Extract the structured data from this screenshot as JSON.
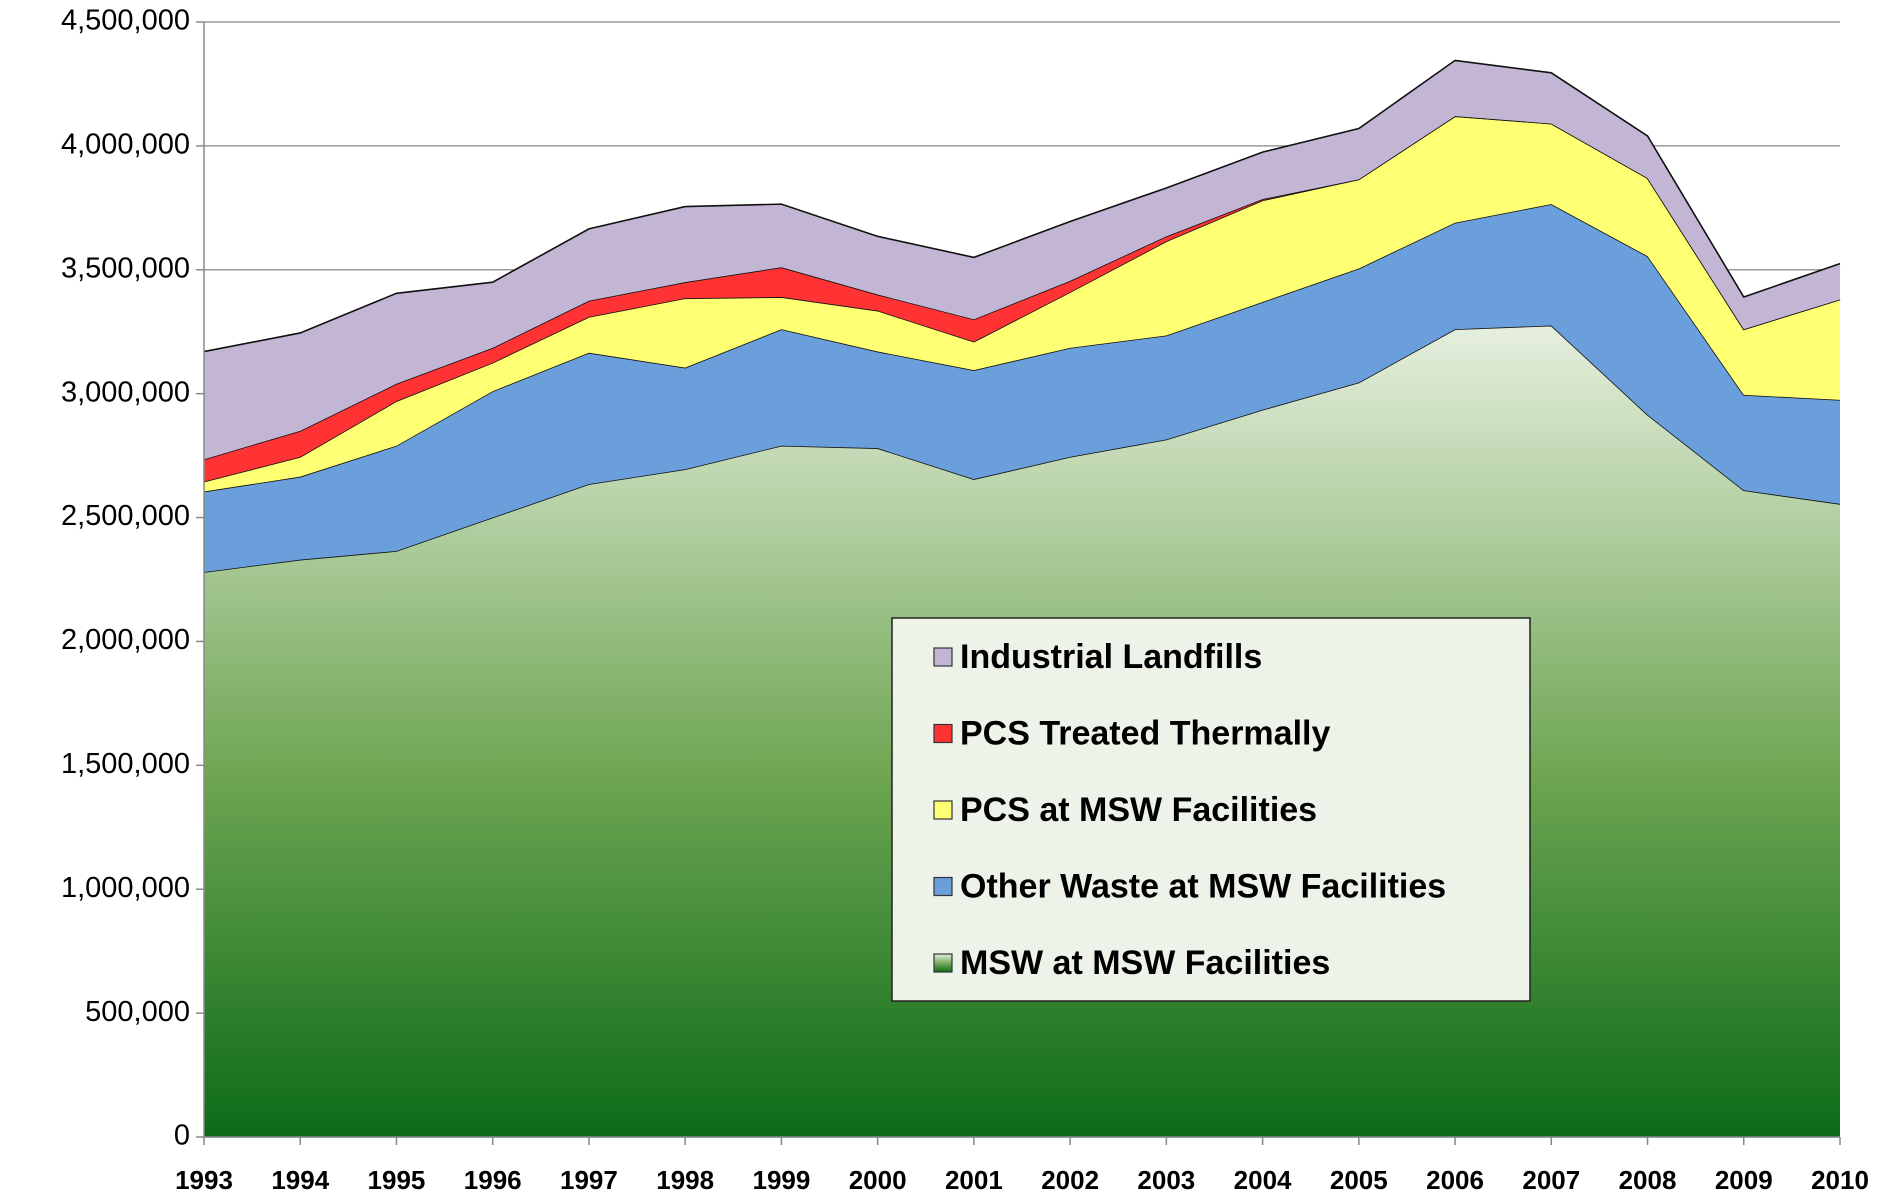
{
  "chart_data": {
    "type": "stacked-area",
    "categories": [
      "1993",
      "1994",
      "1995",
      "1996",
      "1997",
      "1998",
      "1999",
      "2000",
      "2001",
      "2002",
      "2003",
      "2004",
      "2005",
      "2006",
      "2007",
      "2008",
      "2009",
      "2010"
    ],
    "series": [
      {
        "name": "MSW at MSW Facilities",
        "color": "#6fa653",
        "values": [
          2280000,
          2330000,
          2365000,
          2500000,
          2635000,
          2695000,
          2790000,
          2780000,
          2655000,
          2745000,
          2815000,
          2935000,
          3045000,
          3260000,
          3275000,
          2915000,
          2610000,
          2555000
        ]
      },
      {
        "name": "Other Waste at MSW Facilities",
        "color": "#6a9fdb",
        "values": [
          325000,
          335000,
          425000,
          510000,
          530000,
          410000,
          470000,
          390000,
          440000,
          440000,
          420000,
          435000,
          460000,
          430000,
          490000,
          640000,
          385000,
          420000
        ]
      },
      {
        "name": "PCS at MSW Facilities",
        "color": "#ffff73",
        "values": [
          40000,
          80000,
          180000,
          115000,
          145000,
          280000,
          130000,
          165000,
          115000,
          225000,
          380000,
          410000,
          360000,
          430000,
          325000,
          315000,
          265000,
          405000
        ]
      },
      {
        "name": "PCS Treated Thermally",
        "color": "#ff3333",
        "values": [
          90000,
          105000,
          70000,
          60000,
          65000,
          65000,
          120000,
          65000,
          90000,
          45000,
          20000,
          5000,
          0,
          0,
          0,
          0,
          0,
          0
        ]
      },
      {
        "name": "Industrial Landfills",
        "color": "#c3b6d4",
        "values": [
          435000,
          395000,
          365000,
          265000,
          290000,
          305000,
          255000,
          235000,
          250000,
          240000,
          195000,
          190000,
          205000,
          225000,
          205000,
          170000,
          130000,
          145000
        ]
      }
    ],
    "ylim": [
      0,
      4500000
    ],
    "yticks": [
      0,
      {
        "value": 500000,
        "label": "500,000"
      },
      {
        "value": 1000000,
        "label": "1,000,000"
      },
      {
        "value": 1500000,
        "label": "1,500,000"
      },
      {
        "value": 2000000,
        "label": "2,000,000"
      },
      {
        "value": 2500000,
        "label": "2,500,000"
      },
      {
        "value": 3000000,
        "label": "3,000,000"
      },
      {
        "value": 3500000,
        "label": "3,500,000"
      },
      {
        "value": 4000000,
        "label": "4,000,000"
      },
      {
        "value": 4500000,
        "label": "4,500,000"
      }
    ],
    "grid": true,
    "legend": "lower-right"
  }
}
